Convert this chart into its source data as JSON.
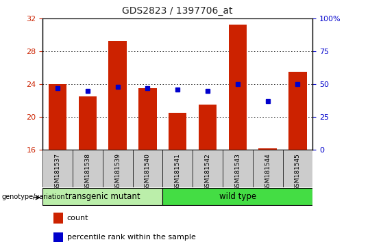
{
  "title": "GDS2823 / 1397706_at",
  "samples": [
    "GSM181537",
    "GSM181538",
    "GSM181539",
    "GSM181540",
    "GSM181541",
    "GSM181542",
    "GSM181543",
    "GSM181544",
    "GSM181545"
  ],
  "counts": [
    24.0,
    22.5,
    29.2,
    23.5,
    20.5,
    21.5,
    31.2,
    16.2,
    25.5
  ],
  "percentiles": [
    47,
    45,
    48,
    47,
    46,
    45,
    50,
    37,
    50
  ],
  "y_min": 16,
  "y_max": 32,
  "y_ticks": [
    16,
    20,
    24,
    28,
    32
  ],
  "y_right_ticks": [
    0,
    25,
    50,
    75,
    100
  ],
  "bar_color": "#cc2200",
  "dot_color": "#0000cc",
  "groups": [
    {
      "label": "transgenic mutant",
      "start": 0,
      "end": 4,
      "color": "#bbeeaa"
    },
    {
      "label": "wild type",
      "start": 4,
      "end": 9,
      "color": "#44dd44"
    }
  ],
  "group_label": "genotype/variation",
  "legend_count_label": "count",
  "legend_percentile_label": "percentile rank within the sample",
  "title_color": "#222222",
  "left_tick_color": "#cc2200",
  "right_tick_color": "#0000cc",
  "grid_color": "#000000",
  "x_tick_bg": "#cccccc"
}
